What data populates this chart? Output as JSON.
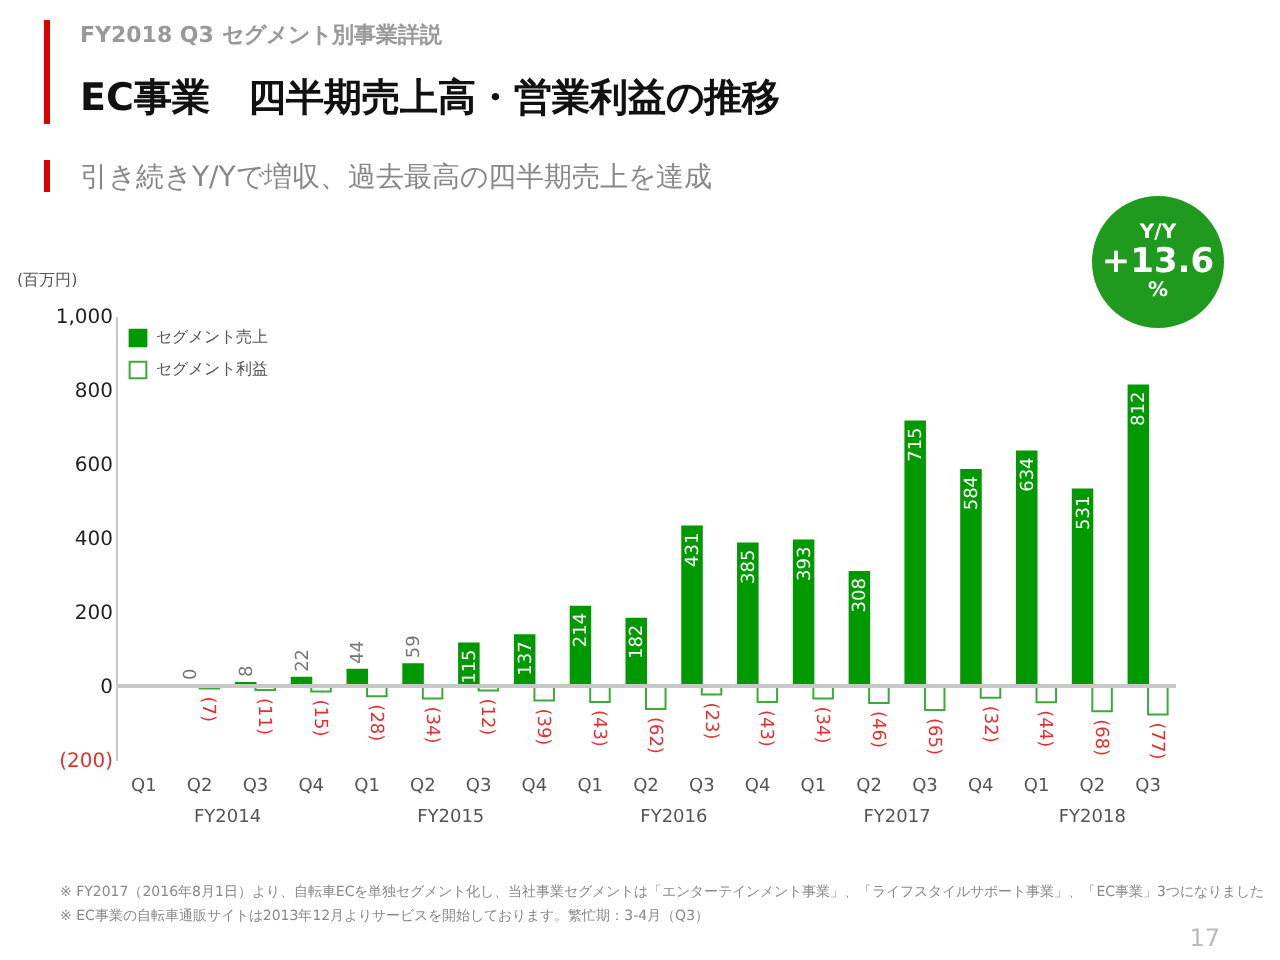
{
  "chart_data": {
    "type": "bar",
    "title": "EC事業　四半期売上高・営業利益の推移",
    "subtitle": "引き続きY/Yで増収、過去最高の四半期売上を達成",
    "ylabel": "(百万円)",
    "categories": [
      "Q1",
      "Q2",
      "Q3",
      "Q4",
      "Q1",
      "Q2",
      "Q3",
      "Q4",
      "Q1",
      "Q2",
      "Q3",
      "Q4",
      "Q1",
      "Q2",
      "Q3",
      "Q4",
      "Q1",
      "Q2",
      "Q3"
    ],
    "series": [
      {
        "name": "セグメント売上",
        "color": "#009a00",
        "values": [
          null,
          0,
          8,
          22,
          44,
          59,
          115,
          137,
          214,
          182,
          431,
          385,
          393,
          308,
          715,
          584,
          634,
          531,
          812
        ],
        "value_labels": [
          null,
          "0",
          "8",
          "22",
          "44",
          "59",
          "115",
          "137",
          "214",
          "182",
          "431",
          "385",
          "393",
          "308",
          "715",
          "584",
          "634",
          "531",
          "812"
        ]
      },
      {
        "name": "セグメント利益",
        "color": "#3aaa3a",
        "values": [
          null,
          -7,
          -11,
          -15,
          -28,
          -34,
          -12,
          -39,
          -43,
          -62,
          -23,
          -43,
          -34,
          -46,
          -65,
          -32,
          -44,
          -68,
          -77
        ],
        "value_labels": [
          null,
          "(7)",
          "(11)",
          "(15)",
          "(28)",
          "(34)",
          "(12)",
          "(39)",
          "(43)",
          "(62)",
          "(23)",
          "(43)",
          "(34)",
          "(46)",
          "(65)",
          "(32)",
          "(44)",
          "(68)",
          "(77)"
        ]
      }
    ],
    "ylim": [
      -200,
      1000
    ],
    "yticks": [
      {
        "value": -200,
        "label": "(200)"
      },
      0,
      200,
      400,
      600,
      800,
      {
        "value": 1000,
        "label": "1,000"
      }
    ],
    "ref_lines": [
      {
        "axis": "y",
        "value": 0,
        "color": "#c8c8c8"
      }
    ],
    "legend": "top left",
    "grid": false,
    "annotations": [
      "FY2018 Q3 セグメント別事業詳説",
      "Y/Y +13.6 %",
      "FY2014",
      "FY2015",
      "FY2016",
      "FY2017",
      "FY2018",
      "※ FY2017（2016年8月1日）より、自転車ECを単独セグメント化し、当社事業セグメントは「エンターテインメント事業」、「ライフスタイルサポート事業」、「EC事業」3つになりました",
      "※ EC事業の自転車通販サイトは2013年12月よりサービスを開始しております。繁忙期：3-4月（Q3）",
      "17"
    ]
  }
}
